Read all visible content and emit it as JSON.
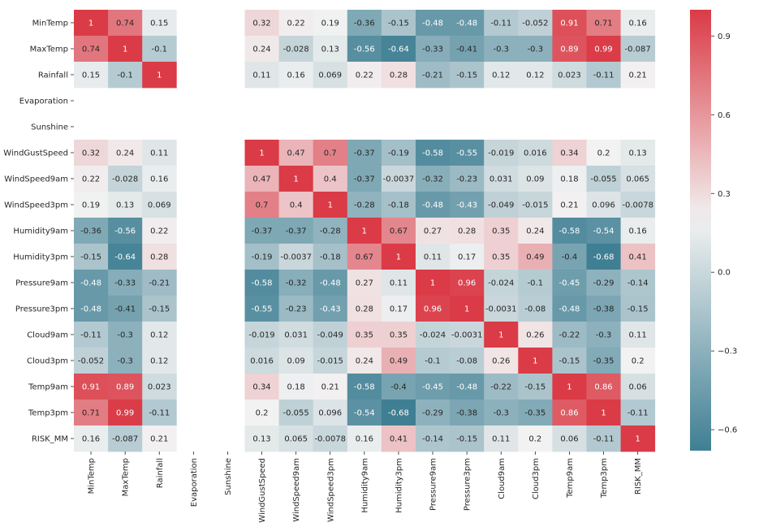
{
  "chart_data": {
    "type": "heatmap",
    "title": "",
    "xlabel": "",
    "ylabel": "",
    "labels": [
      "MinTemp",
      "MaxTemp",
      "Rainfall",
      "Evaporation",
      "Sunshine",
      "WindGustSpeed",
      "WindSpeed9am",
      "WindSpeed3pm",
      "Humidity9am",
      "Humidity3pm",
      "Pressure9am",
      "Pressure3pm",
      "Cloud9am",
      "Cloud3pm",
      "Temp9am",
      "Temp3pm",
      "RISK_MM"
    ],
    "values": [
      [
        1,
        0.74,
        0.15,
        null,
        null,
        0.32,
        0.22,
        0.19,
        -0.36,
        -0.15,
        -0.48,
        -0.48,
        -0.11,
        -0.052,
        0.91,
        0.71,
        0.16
      ],
      [
        0.74,
        1,
        -0.1,
        null,
        null,
        0.24,
        -0.028,
        0.13,
        -0.56,
        -0.64,
        -0.33,
        -0.41,
        -0.3,
        -0.3,
        0.89,
        0.99,
        -0.087
      ],
      [
        0.15,
        -0.1,
        1,
        null,
        null,
        0.11,
        0.16,
        0.069,
        0.22,
        0.28,
        -0.21,
        -0.15,
        0.12,
        0.12,
        0.023,
        -0.11,
        0.21
      ],
      [
        null,
        null,
        null,
        null,
        null,
        null,
        null,
        null,
        null,
        null,
        null,
        null,
        null,
        null,
        null,
        null,
        null
      ],
      [
        null,
        null,
        null,
        null,
        null,
        null,
        null,
        null,
        null,
        null,
        null,
        null,
        null,
        null,
        null,
        null,
        null
      ],
      [
        0.32,
        0.24,
        0.11,
        null,
        null,
        1,
        0.47,
        0.7,
        -0.37,
        -0.19,
        -0.58,
        -0.55,
        -0.019,
        0.016,
        0.34,
        0.2,
        0.13
      ],
      [
        0.22,
        -0.028,
        0.16,
        null,
        null,
        0.47,
        1,
        0.4,
        -0.37,
        -0.0037,
        -0.32,
        -0.23,
        0.031,
        0.09,
        0.18,
        -0.055,
        0.065
      ],
      [
        0.19,
        0.13,
        0.069,
        null,
        null,
        0.7,
        0.4,
        1,
        -0.28,
        -0.18,
        -0.48,
        -0.43,
        -0.049,
        -0.015,
        0.21,
        0.096,
        -0.0078
      ],
      [
        -0.36,
        -0.56,
        0.22,
        null,
        null,
        -0.37,
        -0.37,
        -0.28,
        1,
        0.67,
        0.27,
        0.28,
        0.35,
        0.24,
        -0.58,
        -0.54,
        0.16
      ],
      [
        -0.15,
        -0.64,
        0.28,
        null,
        null,
        -0.19,
        -0.0037,
        -0.18,
        0.67,
        1,
        0.11,
        0.17,
        0.35,
        0.49,
        -0.4,
        -0.68,
        0.41
      ],
      [
        -0.48,
        -0.33,
        -0.21,
        null,
        null,
        -0.58,
        -0.32,
        -0.48,
        0.27,
        0.11,
        1,
        0.96,
        -0.024,
        -0.1,
        -0.45,
        -0.29,
        -0.14
      ],
      [
        -0.48,
        -0.41,
        -0.15,
        null,
        null,
        -0.55,
        -0.23,
        -0.43,
        0.28,
        0.17,
        0.96,
        1,
        -0.0031,
        -0.08,
        -0.48,
        -0.38,
        -0.15
      ],
      [
        -0.11,
        -0.3,
        0.12,
        null,
        null,
        -0.019,
        0.031,
        -0.049,
        0.35,
        0.35,
        -0.024,
        -0.0031,
        1,
        0.26,
        -0.22,
        -0.3,
        0.11
      ],
      [
        -0.052,
        -0.3,
        0.12,
        null,
        null,
        0.016,
        0.09,
        -0.015,
        0.24,
        0.49,
        -0.1,
        -0.08,
        0.26,
        1,
        -0.15,
        -0.35,
        0.2
      ],
      [
        0.91,
        0.89,
        0.023,
        null,
        null,
        0.34,
        0.18,
        0.21,
        -0.58,
        -0.4,
        -0.45,
        -0.48,
        -0.22,
        -0.15,
        1,
        0.86,
        0.06
      ],
      [
        0.71,
        0.99,
        -0.11,
        null,
        null,
        0.2,
        -0.055,
        0.096,
        -0.54,
        -0.68,
        -0.29,
        -0.38,
        -0.3,
        -0.35,
        0.86,
        1,
        -0.11
      ],
      [
        0.16,
        -0.087,
        0.21,
        null,
        null,
        0.13,
        0.065,
        -0.0078,
        0.16,
        0.41,
        -0.14,
        -0.15,
        0.11,
        0.2,
        0.06,
        -0.11,
        1
      ]
    ],
    "colorbar": {
      "min": -0.68,
      "max": 1,
      "ticks": [
        0.9,
        0.6,
        0.3,
        0.0,
        -0.3,
        -0.6
      ],
      "tick_labels": [
        "0.9",
        "0.6",
        "0.3",
        "0.0",
        "−0.3",
        "−0.6"
      ],
      "colors": {
        "negative_end": "#3f7f93",
        "center": "#f2f2f2",
        "positive_end": "#da3b46"
      }
    }
  }
}
